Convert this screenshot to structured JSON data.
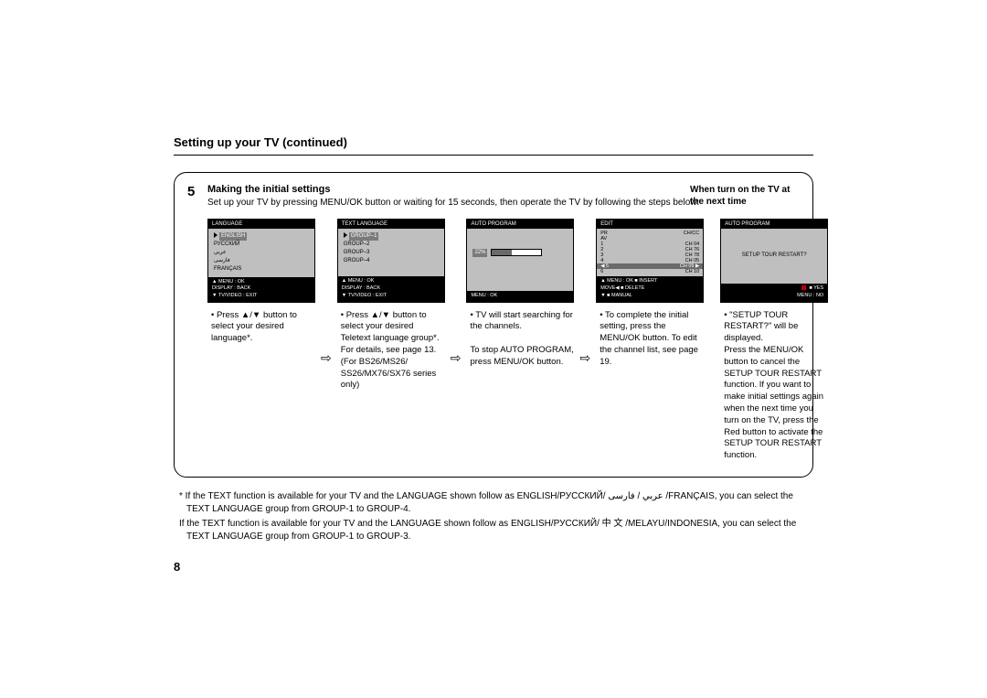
{
  "title": "Setting up your TV (continued)",
  "step_num": "5",
  "step_head": "Making the initial settings",
  "step_text": "Set up your TV by pressing MENU/OK button or waiting for 15 seconds, then operate the TV by following the steps below:",
  "right_head": "When turn on the TV at the next time",
  "arrow": "⇨",
  "screens": {
    "s1": {
      "title": "LANGUAGE",
      "items": [
        "ENGLISH",
        "РУССКИЙ",
        "عربي",
        "فارسی",
        "FRANÇAIS"
      ],
      "foot": [
        "▲   MENU : OK",
        "      DISPLAY : BACK",
        "▼   TV/VIDEO : EXIT"
      ],
      "caption": "Press ▲/▼ button to select your desired language*."
    },
    "s2": {
      "title": "TEXT LANGUAGE",
      "items": [
        "GROUP–1",
        "GROUP–2",
        "GROUP–3",
        "GROUP–4"
      ],
      "foot": [
        "▲   MENU : OK",
        "      DISPLAY : BACK",
        "▼   TV/VIDEO : EXIT"
      ],
      "caption": "Press ▲/▼ button  to select your desired Teletext language group*. For details, see page 13.\n(For BS26/MS26/\nSS26/MX76/SX76 series only)"
    },
    "s3": {
      "title": "AUTO PROGRAM",
      "pct": "22%",
      "foot": "MENU : OK",
      "caption": "TV will start searching for the channels.\n\nTo stop AUTO PROGRAM, press MENU/OK button."
    },
    "s4": {
      "title": "EDIT",
      "head_l": "PR",
      "head_r": "CH/CC",
      "rows": [
        {
          "l": "AV",
          "r": ""
        },
        {
          "l": "1",
          "r": "CH 04"
        },
        {
          "l": "2",
          "r": "CH 76"
        },
        {
          "l": "3",
          "r": "CH 78"
        },
        {
          "l": "4",
          "r": "CH 05"
        },
        {
          "l": "5",
          "r": "CH 09",
          "hl": true
        },
        {
          "l": "6",
          "r": "CH 10"
        }
      ],
      "foot1": "▲         MENU : OK     ■ INSERT",
      "foot2": "MOVE◀                        ■ DELETE",
      "foot3": "▼                               ■ MANUAL",
      "caption": "To complete the initial setting, press the MENU/OK button. To edit the channel list, see page 19."
    },
    "s5": {
      "title": "AUTO PROGRAM",
      "body": "SETUP TOUR RESTART?",
      "foot1": "■ YES",
      "foot2": "MENU : NO",
      "caption": "\"SETUP TOUR RESTART?\" will be displayed.\nPress the MENU/OK button to cancel the SETUP TOUR RESTART function. If you want to make initial settings again when the next time you turn on the TV, press the Red button to activate the SETUP TOUR RESTART function."
    }
  },
  "footnotes": [
    "* If the TEXT function is available for your TV and the LANGUAGE shown follow as ENGLISH/РУССКИЙ/ عربي / فارسی /FRANÇAIS, you can select the TEXT LANGUAGE group from GROUP-1 to GROUP-4.",
    "  If the TEXT function is available for your TV and the LANGUAGE shown follow as ENGLISH/РУССКИЙ/ 中 文 /MELAYU/INDONESIA, you can select the TEXT LANGUAGE group from GROUP-1 to GROUP-3."
  ],
  "pagenum": "8"
}
